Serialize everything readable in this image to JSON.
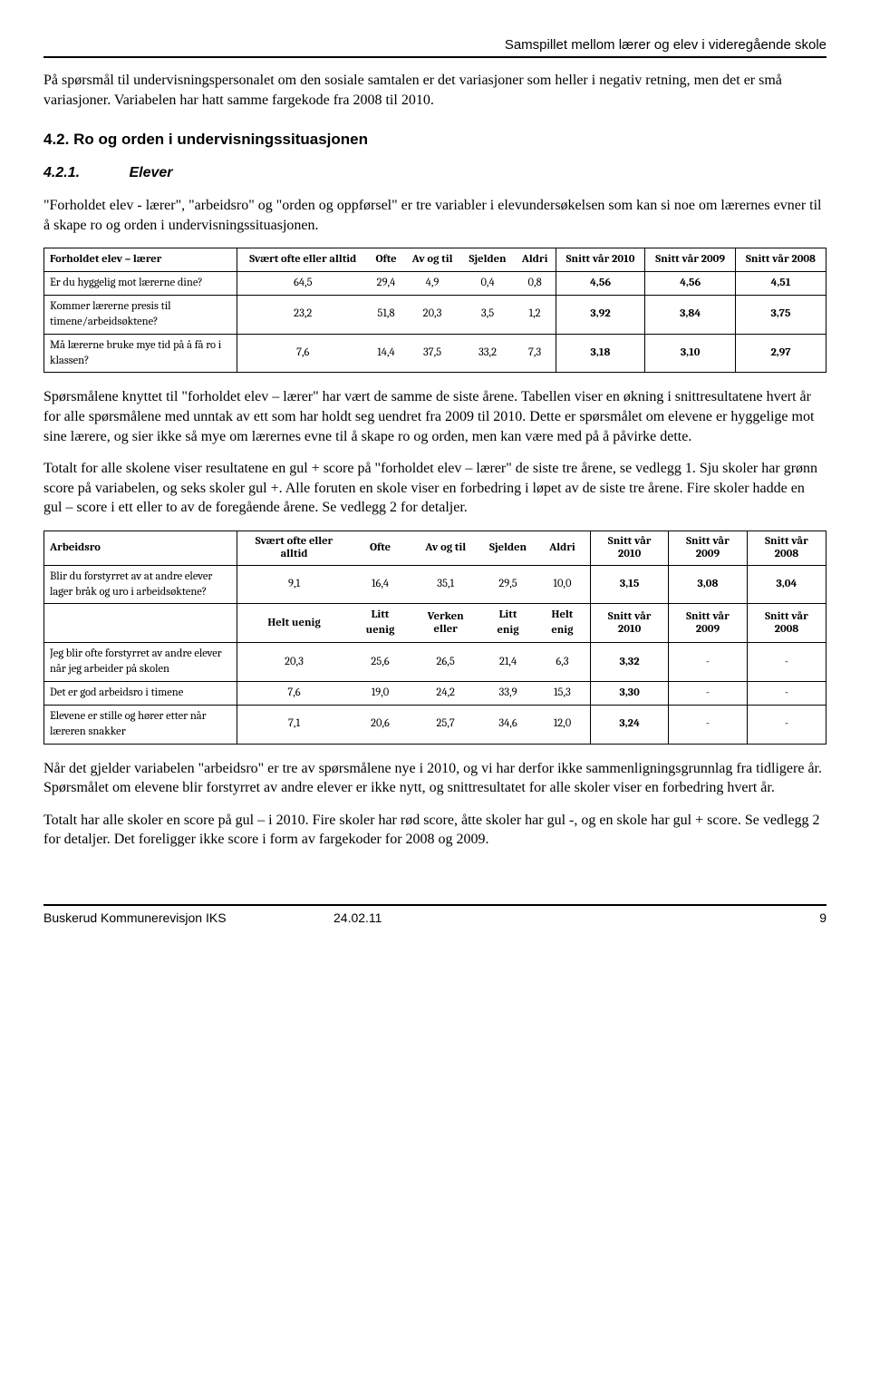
{
  "header": {
    "title": "Samspillet mellom lærer og elev i videregående skole"
  },
  "intro": {
    "p1": "På spørsmål til undervisningspersonalet om den sosiale samtalen er det variasjoner som heller i negativ retning, men det er små variasjoner. Variabelen har hatt samme fargekode fra 2008 til 2010."
  },
  "section42": {
    "num_title": "4.2.    Ro og orden i undervisningssituasjonen"
  },
  "section421": {
    "num": "4.2.1.",
    "title": "Elever",
    "p1": "\"Forholdet elev - lærer\", \"arbeidsro\" og \"orden og oppførsel\" er tre variabler i elevundersøkelsen som kan si noe om lærernes evner til å skape ro og orden i undervisningssituasjonen."
  },
  "table1": {
    "title": "Forholdet elev – lærer",
    "cols": [
      "Svært ofte eller alltid",
      "Ofte",
      "Av og til",
      "Sjelden",
      "Aldri",
      "Snitt vår 2010",
      "Snitt vår 2009",
      "Snitt vår 2008"
    ],
    "rows": [
      {
        "label": "Er du hyggelig mot lærerne dine?",
        "v": [
          "64,5",
          "29,4",
          "4,9",
          "0,4",
          "0,8",
          "4,56",
          "4,56",
          "4,51"
        ]
      },
      {
        "label": "Kommer lærerne presis til timene/arbeidsøktene?",
        "v": [
          "23,2",
          "51,8",
          "20,3",
          "3,5",
          "1,2",
          "3,92",
          "3,84",
          "3,75"
        ]
      },
      {
        "label": "Må lærerne bruke mye tid på å få ro i klassen?",
        "v": [
          "7,6",
          "14,4",
          "37,5",
          "33,2",
          "7,3",
          "3,18",
          "3,10",
          "2,97"
        ]
      }
    ]
  },
  "para_after_t1": {
    "p1": "Spørsmålene knyttet til \"forholdet elev – lærer\" har vært de samme de siste årene. Tabellen viser en økning i snittresultatene hvert år for alle spørsmålene med unntak av ett som har holdt seg uendret fra 2009 til 2010. Dette er spørsmålet om elevene er hyggelige mot sine lærere, og sier ikke så mye om lærernes evne til å skape ro og orden, men kan være med på å påvirke dette.",
    "p2": "Totalt for alle skolene viser resultatene en gul + score på \"forholdet elev – lærer\" de siste tre årene, se vedlegg 1. Sju skoler har grønn score på variabelen, og seks skoler gul +. Alle foruten en skole viser en forbedring i løpet av de siste tre årene. Fire skoler hadde en gul – score i ett eller to av de foregående årene. Se vedlegg 2 for detaljer."
  },
  "table2": {
    "title": "Arbeidsro",
    "cols": [
      "Svært ofte eller alltid",
      "Ofte",
      "Av og til",
      "Sjelden",
      "Aldri",
      "Snitt vår 2010",
      "Snitt vår 2009",
      "Snitt vår 2008"
    ],
    "row1": {
      "label": "Blir du forstyrret av at andre elever lager bråk og uro i arbeidsøktene?",
      "v": [
        "9,1",
        "16,4",
        "35,1",
        "29,5",
        "10,0",
        "3,15",
        "3,08",
        "3,04"
      ]
    },
    "cols2": [
      "Helt uenig",
      "Litt uenig",
      "Verken eller",
      "Litt enig",
      "Helt enig",
      "Snitt vår 2010",
      "Snitt vår 2009",
      "Snitt vår 2008"
    ],
    "rows2": [
      {
        "label": "Jeg blir ofte forstyrret av andre elever når jeg arbeider på skolen",
        "v": [
          "20,3",
          "25,6",
          "26,5",
          "21,4",
          "6,3",
          "3,32",
          "-",
          "-"
        ]
      },
      {
        "label": "Det er god arbeidsro i timene",
        "v": [
          "7,6",
          "19,0",
          "24,2",
          "33,9",
          "15,3",
          "3,30",
          "-",
          "-"
        ]
      },
      {
        "label": "Elevene er stille og hører etter når læreren snakker",
        "v": [
          "7,1",
          "20,6",
          "25,7",
          "34,6",
          "12,0",
          "3,24",
          "-",
          "-"
        ]
      }
    ]
  },
  "para_after_t2": {
    "p1": "Når det gjelder variabelen \"arbeidsro\" er tre av spørsmålene nye i 2010, og vi har derfor ikke sammenligningsgrunnlag fra tidligere år. Spørsmålet om elevene blir forstyrret av andre elever er ikke nytt, og snittresultatet for alle skoler viser en forbedring hvert år.",
    "p2": "Totalt har alle skoler en score på gul – i 2010. Fire skoler har rød score, åtte skoler har gul -, og en skole har gul + score. Se vedlegg 2 for detaljer. Det foreligger ikke score i form av fargekoder for 2008 og 2009."
  },
  "footer": {
    "org": "Buskerud Kommunerevisjon IKS",
    "date": "24.02.11",
    "page": "9"
  }
}
